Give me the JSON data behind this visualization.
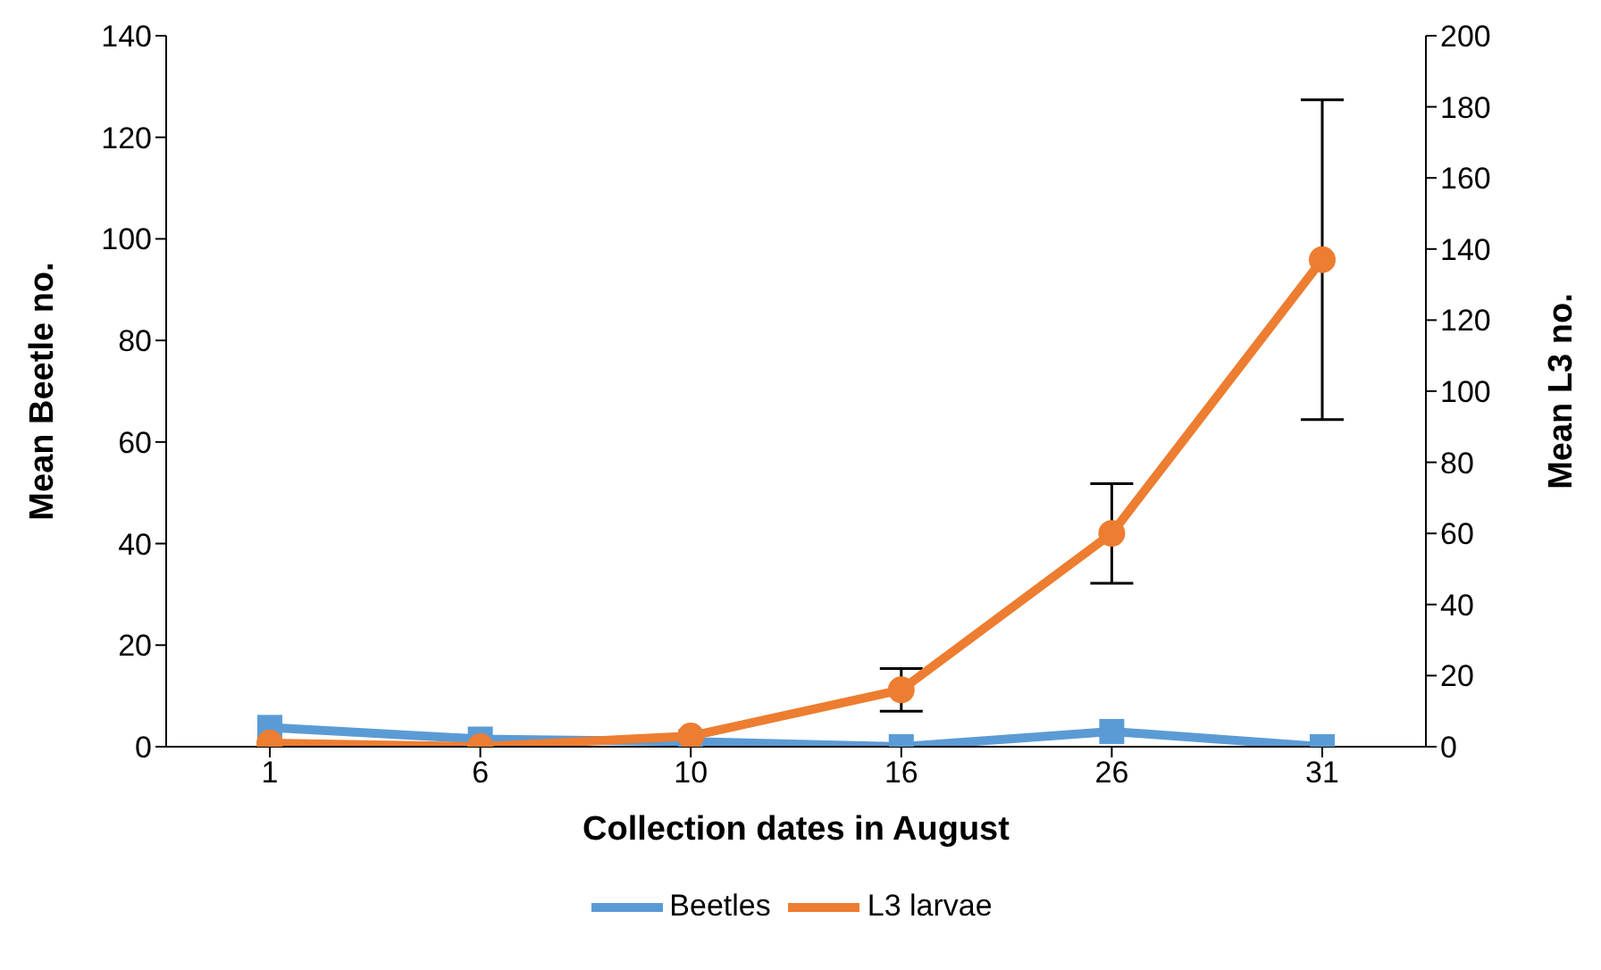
{
  "chart_data": {
    "type": "line",
    "xlabel": "Collection dates in August",
    "ylabel": "Mean Beetle no.",
    "y2label": "Mean L3 no.",
    "categories": [
      "1",
      "6",
      "10",
      "16",
      "26",
      "31"
    ],
    "series": [
      {
        "name": "Beetles",
        "color": "#5b9bd5",
        "marker": "square",
        "values": [
          3.8,
          1.5,
          1,
          0,
          3,
          0
        ]
      },
      {
        "name": "L3 larvae",
        "color": "#ed7d31",
        "marker": "circle",
        "axis": "y2",
        "values": [
          1,
          0,
          3,
          16,
          60,
          137
        ],
        "errors": [
          null,
          null,
          null,
          6,
          14,
          45
        ]
      }
    ],
    "ylim": [
      0,
      140
    ],
    "yticks": [
      0,
      20,
      40,
      60,
      80,
      100,
      120,
      140
    ],
    "y2lim": [
      0,
      200
    ],
    "y2ticks": [
      0,
      20,
      40,
      60,
      80,
      100,
      120,
      140,
      160,
      180,
      200
    ],
    "grid": false,
    "legend": "bottom"
  }
}
